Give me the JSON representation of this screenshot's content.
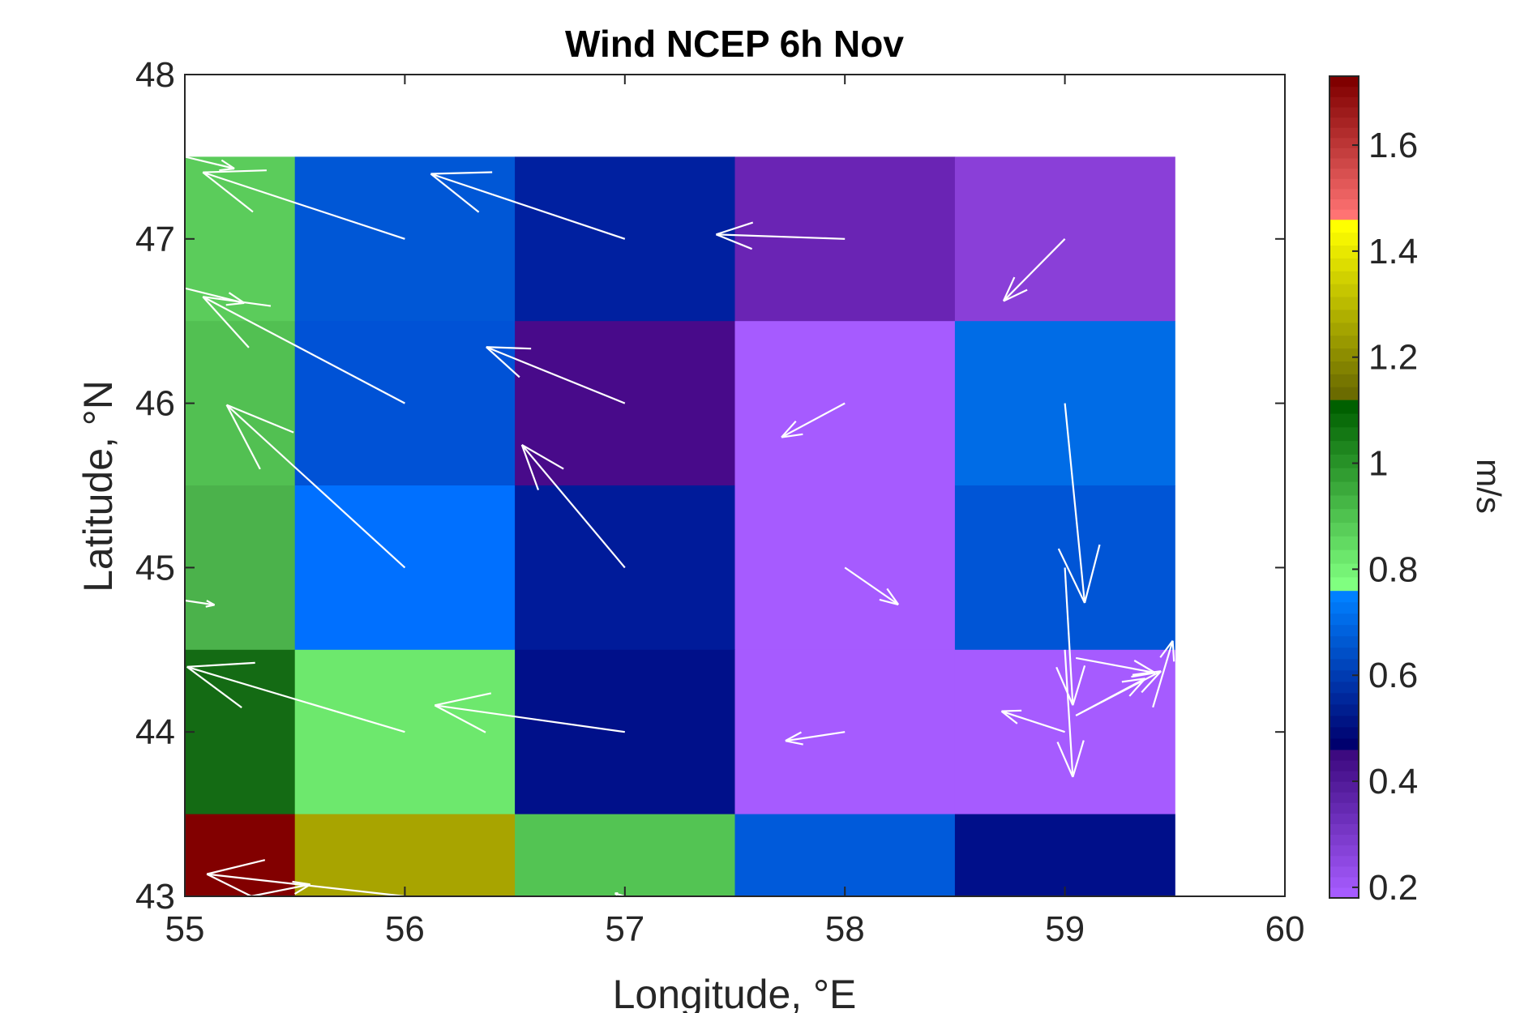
{
  "chart_data": {
    "type": "heatmap",
    "title": "Wind NCEP 6h Nov",
    "xlabel": "Longitude, °E",
    "ylabel": "Latitude, °N",
    "xlim": [
      55,
      60
    ],
    "ylim": [
      43,
      48
    ],
    "xticks": [
      "55",
      "56",
      "57",
      "58",
      "59",
      "60"
    ],
    "yticks": [
      "43",
      "44",
      "45",
      "46",
      "47",
      "48"
    ],
    "colorbar": {
      "label": "m/s",
      "range": [
        0.18,
        1.73
      ],
      "ticks": [
        "0.2",
        "0.4",
        "0.6",
        "0.8",
        "1",
        "1.2",
        "1.4",
        "1.6"
      ],
      "segments": [
        {
          "from": 0.18,
          "to": 0.46,
          "colors": [
            "#a65bff",
            "#3d0a80"
          ]
        },
        {
          "from": 0.46,
          "to": 0.76,
          "colors": [
            "#00006e",
            "#0080ff"
          ]
        },
        {
          "from": 0.76,
          "to": 1.12,
          "colors": [
            "#80ff80",
            "#006000"
          ]
        },
        {
          "from": 1.12,
          "to": 1.46,
          "colors": [
            "#6b6b00",
            "#ffff00"
          ]
        },
        {
          "from": 1.46,
          "to": 1.73,
          "colors": [
            "#ff7373",
            "#800000"
          ]
        }
      ]
    },
    "cells": [
      {
        "x0": 55,
        "x1": 55.5,
        "y0": 46.5,
        "y1": 47.5,
        "value": 0.88,
        "color": "#5bcc5b"
      },
      {
        "x0": 55.5,
        "x1": 56.5,
        "y0": 46.5,
        "y1": 47.5,
        "value": 0.64,
        "color": "#0057d6"
      },
      {
        "x0": 56.5,
        "x1": 57.5,
        "y0": 46.5,
        "y1": 47.5,
        "value": 0.52,
        "color": "#0020a0"
      },
      {
        "x0": 57.5,
        "x1": 58.5,
        "y0": 46.5,
        "y1": 47.5,
        "value": 0.34,
        "color": "#6a24b4"
      },
      {
        "x0": 58.5,
        "x1": 59.5,
        "y0": 46.5,
        "y1": 47.5,
        "value": 0.27,
        "color": "#8a3fd8"
      },
      {
        "x0": 55,
        "x1": 55.5,
        "y0": 45.5,
        "y1": 46.5,
        "value": 0.9,
        "color": "#52c052"
      },
      {
        "x0": 55.5,
        "x1": 56.5,
        "y0": 45.5,
        "y1": 46.5,
        "value": 0.62,
        "color": "#0052d6"
      },
      {
        "x0": 56.5,
        "x1": 57.5,
        "y0": 45.5,
        "y1": 46.5,
        "value": 0.4,
        "color": "#480a8a"
      },
      {
        "x0": 57.5,
        "x1": 58.5,
        "y0": 45.5,
        "y1": 46.5,
        "value": 0.18,
        "color": "#a65bff"
      },
      {
        "x0": 58.5,
        "x1": 59.5,
        "y0": 45.5,
        "y1": 46.5,
        "value": 0.68,
        "color": "#006ce6"
      },
      {
        "x0": 55,
        "x1": 55.5,
        "y0": 44.5,
        "y1": 45.5,
        "value": 0.93,
        "color": "#4bb24b"
      },
      {
        "x0": 55.5,
        "x1": 56.5,
        "y0": 44.5,
        "y1": 45.5,
        "value": 0.72,
        "color": "#0070ff"
      },
      {
        "x0": 56.5,
        "x1": 57.5,
        "y0": 44.5,
        "y1": 45.5,
        "value": 0.5,
        "color": "#001b9a"
      },
      {
        "x0": 57.5,
        "x1": 58.5,
        "y0": 44.5,
        "y1": 45.5,
        "value": 0.18,
        "color": "#a65bff"
      },
      {
        "x0": 58.5,
        "x1": 59.5,
        "y0": 44.5,
        "y1": 45.5,
        "value": 0.63,
        "color": "#0055d6"
      },
      {
        "x0": 55,
        "x1": 55.5,
        "y0": 43.5,
        "y1": 44.5,
        "value": 1.08,
        "color": "#146b14"
      },
      {
        "x0": 55.5,
        "x1": 56.5,
        "y0": 43.5,
        "y1": 44.5,
        "value": 0.82,
        "color": "#6de86d"
      },
      {
        "x0": 56.5,
        "x1": 57.5,
        "y0": 43.5,
        "y1": 44.5,
        "value": 0.48,
        "color": "#00108a"
      },
      {
        "x0": 57.5,
        "x1": 58.5,
        "y0": 43.5,
        "y1": 44.5,
        "value": 0.18,
        "color": "#a65bff"
      },
      {
        "x0": 58.5,
        "x1": 59.5,
        "y0": 43.5,
        "y1": 44.5,
        "value": 0.18,
        "color": "#a65bff"
      },
      {
        "x0": 55,
        "x1": 55.5,
        "y0": 43,
        "y1": 43.5,
        "value": 1.7,
        "color": "#820000"
      },
      {
        "x0": 55.5,
        "x1": 56.5,
        "y0": 43,
        "y1": 43.5,
        "value": 1.3,
        "color": "#a8a400"
      },
      {
        "x0": 56.5,
        "x1": 57.5,
        "y0": 43,
        "y1": 43.5,
        "value": 0.88,
        "color": "#53c453"
      },
      {
        "x0": 57.5,
        "x1": 58.5,
        "y0": 43,
        "y1": 43.5,
        "value": 0.64,
        "color": "#005ada"
      },
      {
        "x0": 58.5,
        "x1": 59.5,
        "y0": 43,
        "y1": 43.5,
        "value": 0.48,
        "color": "#000f8a"
      }
    ],
    "vectors": [
      {
        "x": 56,
        "y": 47,
        "u": -1.02,
        "v": 0.45
      },
      {
        "x": 57,
        "y": 47,
        "u": -0.98,
        "v": 0.44
      },
      {
        "x": 58,
        "y": 47,
        "u": -0.65,
        "v": 0.03
      },
      {
        "x": 59,
        "y": 47,
        "u": -0.31,
        "v": -0.42
      },
      {
        "x": 56,
        "y": 46,
        "u": -1.02,
        "v": 0.72
      },
      {
        "x": 57,
        "y": 46,
        "u": -0.7,
        "v": 0.38
      },
      {
        "x": 58,
        "y": 46,
        "u": -0.32,
        "v": -0.23
      },
      {
        "x": 59,
        "y": 46,
        "u": 0.1,
        "v": -1.35
      },
      {
        "x": 56,
        "y": 45,
        "u": -0.9,
        "v": 1.1
      },
      {
        "x": 57,
        "y": 45,
        "u": -0.52,
        "v": 0.83
      },
      {
        "x": 58,
        "y": 45,
        "u": 0.27,
        "v": -0.25
      },
      {
        "x": 59,
        "y": 45,
        "u": 0.04,
        "v": -0.93
      },
      {
        "x": 56,
        "y": 44,
        "u": -1.1,
        "v": 0.44
      },
      {
        "x": 57,
        "y": 44,
        "u": -0.96,
        "v": 0.18
      },
      {
        "x": 58,
        "y": 44,
        "u": -0.3,
        "v": -0.06
      },
      {
        "x": 59,
        "y": 44,
        "u": -0.32,
        "v": 0.14
      },
      {
        "x": 59,
        "y": 44.5,
        "u": 0.04,
        "v": -0.86
      },
      {
        "x": 59.05,
        "y": 44.45,
        "u": 0.4,
        "v": -0.1
      },
      {
        "x": 59.05,
        "y": 44.1,
        "u": 0.35,
        "v": 0.25
      },
      {
        "x": 59.05,
        "y": 44.1,
        "u": 0.43,
        "v": 0.3
      },
      {
        "x": 59.4,
        "y": 44.15,
        "u": 0.1,
        "v": 0.45
      },
      {
        "x": 55,
        "y": 47.5,
        "u": 0.25,
        "v": -0.08
      },
      {
        "x": 55,
        "y": 46.7,
        "u": 0.3,
        "v": -0.1
      },
      {
        "x": 55,
        "y": 44.8,
        "u": 0.15,
        "v": -0.03
      },
      {
        "x": 56,
        "y": 43,
        "u": -1.0,
        "v": 0.15
      },
      {
        "x": 55.3,
        "y": 43,
        "u": 0.3,
        "v": 0.08
      },
      {
        "x": 57,
        "y": 43,
        "u": -0.05,
        "v": 0.02
      }
    ]
  }
}
